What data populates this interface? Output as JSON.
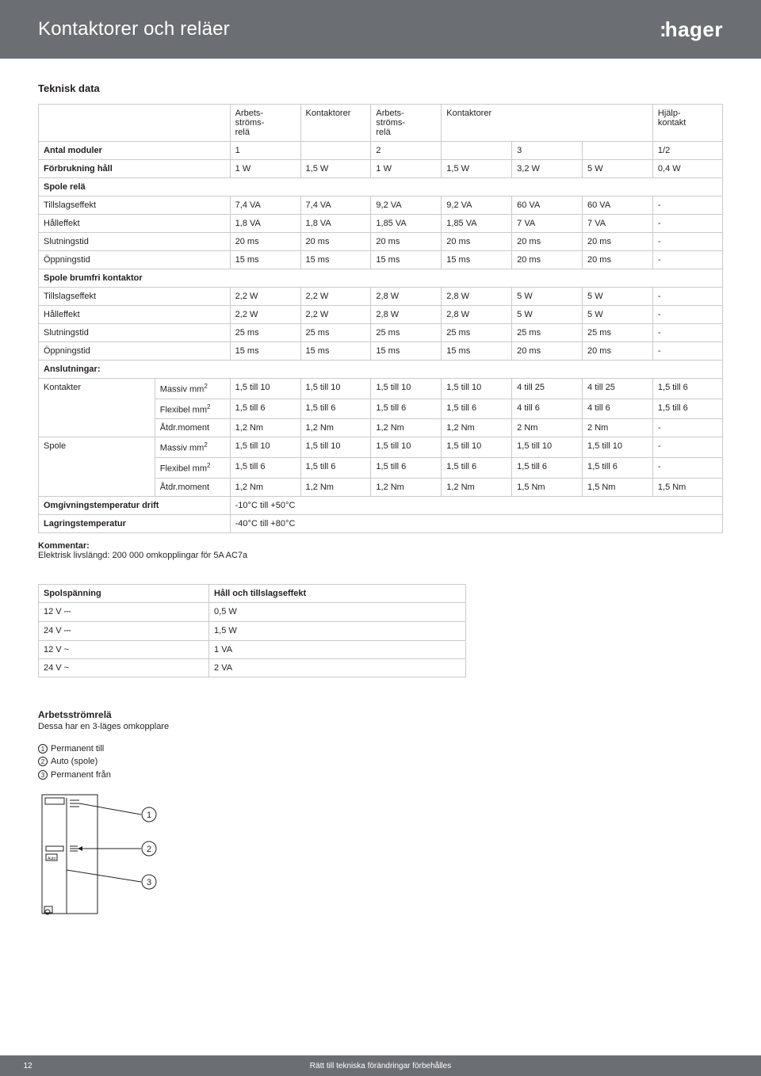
{
  "header": {
    "title": "Kontaktorer och reläer",
    "logo": ":hager"
  },
  "section_title": "Teknisk data",
  "main_table": {
    "col_headers": [
      "",
      "",
      "Arbets-\nströms-\nrelä",
      "Kontaktorer",
      "Arbets-\nströms-\nrelä",
      "Kontaktorer",
      "",
      "",
      "Hjälp-\nkontakt"
    ],
    "col_header_spans": [
      1,
      1,
      1,
      1,
      1,
      3,
      1
    ],
    "rows": [
      {
        "label": "Antal moduler",
        "bold": true,
        "cells": [
          "1",
          "",
          "2",
          "",
          "3",
          "",
          "1/2"
        ]
      },
      {
        "label": "Förbrukning håll",
        "bold": true,
        "cells": [
          "1 W",
          "1,5 W",
          "1 W",
          "1,5 W",
          "3,2 W",
          "5 W",
          "0,4 W"
        ]
      },
      {
        "section": "Spole relä"
      },
      {
        "label": "Tillslagseffekt",
        "cells": [
          "7,4 VA",
          "7,4 VA",
          "9,2 VA",
          "9,2 VA",
          "60 VA",
          "60 VA",
          "-"
        ]
      },
      {
        "label": "Hålleffekt",
        "cells": [
          "1,8 VA",
          "1,8 VA",
          "1,85 VA",
          "1,85 VA",
          "7 VA",
          "7 VA",
          "-"
        ]
      },
      {
        "label": "Slutningstid",
        "cells": [
          "20 ms",
          "20 ms",
          "20 ms",
          "20 ms",
          "20 ms",
          "20 ms",
          "-"
        ]
      },
      {
        "label": "Öppningstid",
        "cells": [
          "15 ms",
          "15 ms",
          "15 ms",
          "15 ms",
          "20 ms",
          "20 ms",
          "-"
        ]
      },
      {
        "section": "Spole brumfri kontaktor"
      },
      {
        "label": "Tillslagseffekt",
        "cells": [
          "2,2 W",
          "2,2 W",
          "2,8 W",
          "2,8 W",
          "5 W",
          "5 W",
          "-"
        ]
      },
      {
        "label": "Hålleffekt",
        "cells": [
          "2,2 W",
          "2,2 W",
          "2,8 W",
          "2,8 W",
          "5 W",
          "5 W",
          "-"
        ]
      },
      {
        "label": "Slutningstid",
        "cells": [
          "25 ms",
          "25 ms",
          "25 ms",
          "25 ms",
          "25 ms",
          "25 ms",
          "-"
        ]
      },
      {
        "label": "Öppningstid",
        "cells": [
          "15 ms",
          "15 ms",
          "15 ms",
          "15 ms",
          "20 ms",
          "20 ms",
          "-"
        ]
      },
      {
        "section": "Anslutningar:"
      },
      {
        "group": "Kontakter",
        "sub": "Massiv mm²",
        "cells": [
          "1,5 till 10",
          "1,5 till 10",
          "1,5 till 10",
          "1,5 till 10",
          "4 till 25",
          "4 till 25",
          "1,5 till 6"
        ]
      },
      {
        "group": "",
        "sub": "Flexibel mm²",
        "cells": [
          "1,5 till 6",
          "1,5 till 6",
          "1,5 till 6",
          "1,5 till 6",
          "4 till 6",
          "4 till 6",
          "1,5 till 6"
        ]
      },
      {
        "group": "",
        "sub": "Åtdr.moment",
        "cells": [
          "1,2 Nm",
          "1,2 Nm",
          "1,2 Nm",
          "1,2 Nm",
          "2 Nm",
          "2 Nm",
          "-"
        ]
      },
      {
        "group": "Spole",
        "sub": "Massiv mm²",
        "cells": [
          "1,5 till 10",
          "1,5 till 10",
          "1,5 till 10",
          "1,5 till 10",
          "1,5 till 10",
          "1,5 till 10",
          "-"
        ]
      },
      {
        "group": "",
        "sub": "Flexibel mm²",
        "cells": [
          "1,5 till 6",
          "1,5 till 6",
          "1,5 till 6",
          "1,5 till 6",
          "1,5 till 6",
          "1,5 till 6",
          "-"
        ]
      },
      {
        "group": "",
        "sub": "Åtdr.moment",
        "cells": [
          "1,2 Nm",
          "1,2 Nm",
          "1,2 Nm",
          "1,2 Nm",
          "1,5 Nm",
          "1,5 Nm",
          "1,5 Nm"
        ]
      },
      {
        "label": "Omgivningstemperatur drift",
        "bold": true,
        "full": "-10°C till +50°C"
      },
      {
        "label": "Lagringstemperatur",
        "bold": true,
        "full": "-40°C till +80°C"
      }
    ]
  },
  "comment": {
    "label": "Kommentar:",
    "text": "Elektrisk livslängd: 200 000 omkopplingar för 5A AC7a"
  },
  "small_table": {
    "headers": [
      "Spolspänning",
      "Håll och tillslagseffekt"
    ],
    "rows": [
      [
        "12 V ⎓",
        "0,5 W"
      ],
      [
        "24 V ⎓",
        "1,5 W"
      ],
      [
        "12 V ~",
        "1 VA"
      ],
      [
        "24 V ~",
        "2 VA"
      ]
    ]
  },
  "relay_section": {
    "heading": "Arbetsströmrelä",
    "subtext": "Dessa har en 3-läges omkopplare",
    "items": [
      "Permanent till",
      "Auto (spole)",
      "Permanent från"
    ]
  },
  "diagram": {
    "labels": [
      "1",
      "2",
      "3"
    ],
    "auto_text": "Auto"
  },
  "footer": {
    "page": "12",
    "text": "Rätt till tekniska förändringar förbehålles"
  }
}
